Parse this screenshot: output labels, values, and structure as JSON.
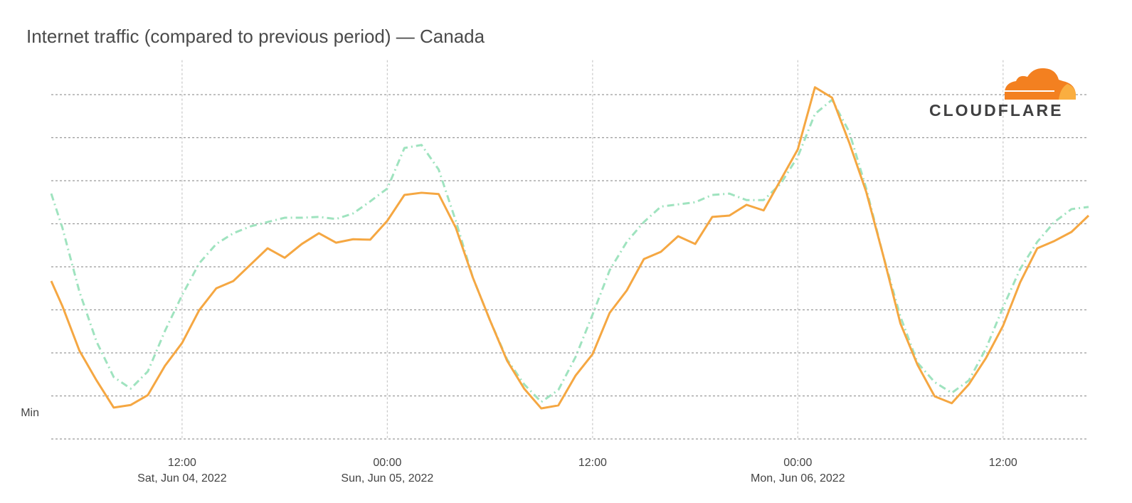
{
  "chart_data": {
    "type": "line",
    "title": "Internet traffic (compared to previous period) — Canada",
    "logo": "CLOUDFLARE",
    "x": [
      4.35,
      5,
      6,
      7,
      8,
      9,
      10,
      11,
      12,
      13,
      14,
      15,
      16,
      17,
      18,
      19,
      20,
      21,
      22,
      23,
      24,
      25,
      26,
      27,
      28,
      29,
      30,
      31,
      32,
      33,
      34,
      35,
      36,
      37,
      38,
      39,
      40,
      41,
      42,
      43,
      44,
      45,
      46,
      47,
      48,
      49,
      50,
      51,
      52,
      53,
      54,
      55,
      56,
      57,
      58,
      59,
      60,
      61,
      62,
      63,
      64,
      65
    ],
    "series": [
      {
        "color": "#9fe3bf",
        "dash": "dash-dot",
        "values": [
          5.7,
          4.91,
          3.42,
          2.26,
          1.44,
          1.17,
          1.57,
          2.51,
          3.34,
          4.08,
          4.53,
          4.78,
          4.94,
          5.04,
          5.14,
          5.14,
          5.16,
          5.11,
          5.24,
          5.52,
          5.82,
          6.76,
          6.83,
          6.26,
          5.07,
          3.75,
          2.76,
          1.85,
          1.27,
          0.86,
          1.14,
          1.9,
          2.89,
          3.92,
          4.58,
          5.04,
          5.4,
          5.45,
          5.5,
          5.67,
          5.7,
          5.55,
          5.55,
          5.93,
          6.56,
          7.55,
          7.88,
          7.14,
          5.82,
          4.25,
          2.84,
          1.77,
          1.32,
          1.07,
          1.36,
          2.1,
          3.06,
          3.95,
          4.58,
          5.04,
          5.34,
          5.39
        ]
      },
      {
        "color": "#f5a742",
        "dash": "solid",
        "values": [
          3.67,
          3.09,
          2.05,
          1.36,
          0.73,
          0.79,
          1.02,
          1.7,
          2.23,
          2.99,
          3.5,
          3.67,
          4.05,
          4.43,
          4.21,
          4.53,
          4.78,
          4.56,
          4.64,
          4.63,
          5.07,
          5.67,
          5.72,
          5.69,
          4.91,
          3.75,
          2.76,
          1.82,
          1.17,
          0.71,
          0.78,
          1.47,
          1.97,
          2.93,
          3.45,
          4.18,
          4.35,
          4.71,
          4.53,
          5.16,
          5.19,
          5.44,
          5.31,
          6.02,
          6.73,
          8.17,
          7.93,
          6.89,
          5.74,
          4.25,
          2.68,
          1.72,
          0.99,
          0.83,
          1.27,
          1.88,
          2.63,
          3.64,
          4.43,
          4.6,
          4.81,
          5.19
        ]
      }
    ],
    "xlim": [
      4.35,
      65
    ],
    "xticks": [
      {
        "value": 12,
        "label": "12:00"
      },
      {
        "value": 24,
        "label": "00:00"
      },
      {
        "value": 36,
        "label": "12:00"
      },
      {
        "value": 48,
        "label": "00:00"
      },
      {
        "value": 60,
        "label": "12:00"
      }
    ],
    "xtick_dates": [
      "Sat, Jun 04, 2022",
      "Sun, Jun 05, 2022",
      null,
      "Mon, Jun 06, 2022",
      null
    ],
    "ylim": [
      0,
      8.8
    ],
    "yticks": [
      {
        "value": 0.6,
        "label": "Min"
      }
    ],
    "ygrid": [
      0,
      1,
      2,
      3,
      4,
      5,
      6,
      7,
      8
    ],
    "grid": true
  }
}
